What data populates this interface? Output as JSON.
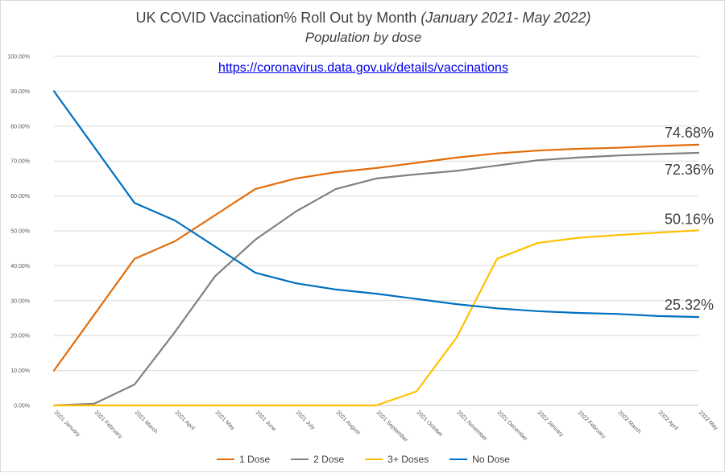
{
  "chart_data": {
    "type": "line",
    "title_main": "UK COVID Vaccination% Roll Out by Month",
    "title_range": "(January 2021- May 2022)",
    "subtitle": "Population by dose",
    "source_link": "https://coronavirus.data.gov.uk/details/vaccinations",
    "xlabel": "",
    "ylabel": "",
    "ylim": [
      0,
      100
    ],
    "y_ticks": [
      "0.00%",
      "10.00%",
      "20.00%",
      "30.00%",
      "40.00%",
      "50.00%",
      "60.00%",
      "70.00%",
      "80.00%",
      "90.00%",
      "100.00%"
    ],
    "y_tick_values": [
      0,
      10,
      20,
      30,
      40,
      50,
      60,
      70,
      80,
      90,
      100
    ],
    "grid": true,
    "legend_position": "bottom",
    "categories": [
      "2021 January",
      "2021 February",
      "2021 March",
      "2021 April",
      "2021 May",
      "2021 June",
      "2021 July",
      "2021 August",
      "2021 September",
      "2021 October",
      "2021 November",
      "2021 December",
      "2022 January",
      "2022 February",
      "2022 March",
      "2022 April",
      "2022 May"
    ],
    "series": [
      {
        "name": "1 Dose",
        "color": "#e36c0a",
        "values": [
          10,
          26,
          42,
          47,
          54.5,
          62,
          65,
          66.8,
          68,
          69.5,
          71,
          72.2,
          73,
          73.5,
          73.8,
          74.3,
          74.68
        ],
        "end_label": "74.68%"
      },
      {
        "name": "2 Dose",
        "color": "#808080",
        "values": [
          0,
          0.5,
          6,
          21,
          37,
          47.5,
          55.5,
          62,
          65,
          66.2,
          67.2,
          68.7,
          70.2,
          71,
          71.6,
          72,
          72.36
        ],
        "end_label": "72.36%"
      },
      {
        "name": "3+ Doses",
        "color": "#ffc000",
        "values": [
          0,
          0,
          0,
          0,
          0,
          0,
          0,
          0,
          0,
          4,
          19.5,
          42,
          46.5,
          48,
          48.8,
          49.5,
          50.16
        ],
        "end_label": "50.16%"
      },
      {
        "name": "No Dose",
        "color": "#0070c0",
        "values": [
          90,
          74,
          58,
          53,
          45.5,
          38,
          35,
          33.2,
          32,
          30.5,
          29,
          27.8,
          27,
          26.5,
          26.2,
          25.6,
          25.32
        ],
        "end_label": "25.32%"
      }
    ]
  }
}
